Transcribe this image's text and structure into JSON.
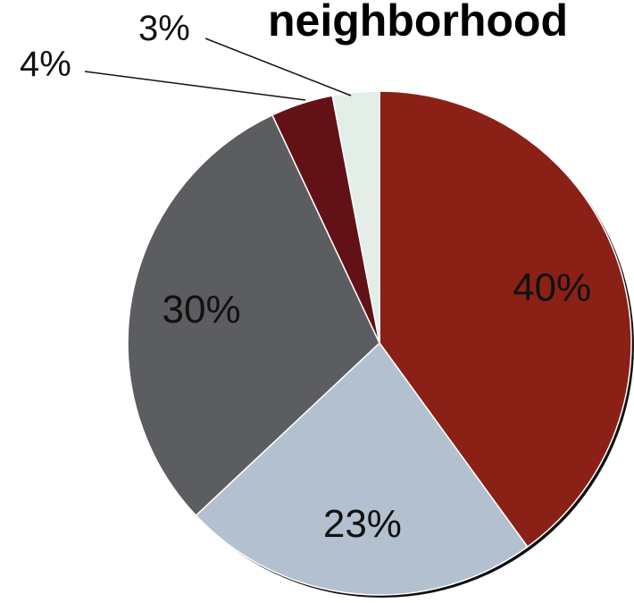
{
  "chart_data": {
    "type": "pie",
    "title": "neighborhood",
    "categories": [
      "",
      "",
      "",
      "",
      ""
    ],
    "values": [
      40,
      23,
      30,
      4,
      3
    ],
    "labels": [
      "40%",
      "23%",
      "30%",
      "4%",
      "3%"
    ],
    "colors": [
      "#8b2016",
      "#b3c0cf",
      "#5c5d60",
      "#621217",
      "#e3eee9"
    ],
    "start_angle_deg": 0,
    "direction": "clockwise",
    "label_positions": [
      "inside",
      "inside",
      "inside",
      "outside",
      "outside"
    ],
    "legend": "none"
  }
}
